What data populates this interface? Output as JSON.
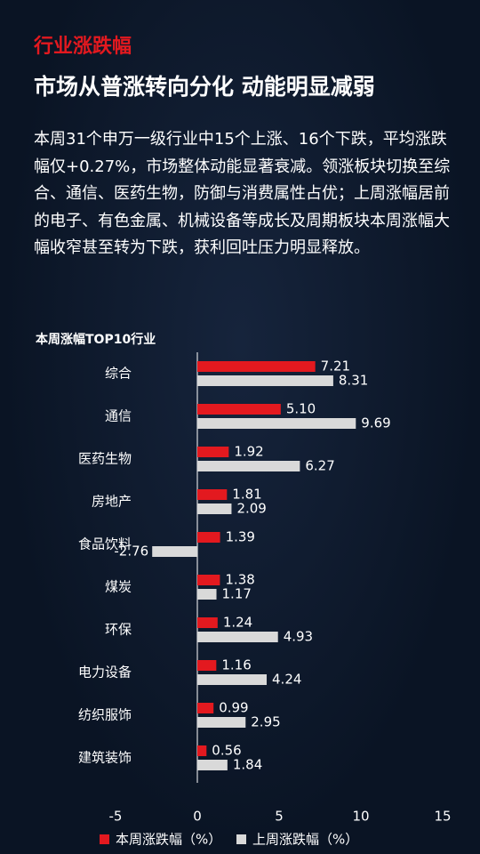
{
  "header": {
    "tag": "行业涨跌幅",
    "headline": "市场从普涨转向分化 动能明显减弱"
  },
  "paragraph": "本周31个申万一级行业中15个上涨、16个下跌，平均涨跌幅仅+0.27%，市场整体动能显著衰减。领涨板块切换至综合、通信、医药生物，防御与消费属性占优；上周涨幅居前的电子、有色金属、机械设备等成长及周期板块本周涨幅大幅收窄甚至转为下跌，获利回吐压力明显释放。",
  "chart_data": {
    "type": "bar",
    "orientation": "horizontal",
    "title": "本周涨幅TOP10行业",
    "categories": [
      "综合",
      "通信",
      "医药生物",
      "房地产",
      "食品饮料",
      "煤炭",
      "环保",
      "电力设备",
      "纺织服饰",
      "建筑装饰"
    ],
    "series": [
      {
        "name": "本周涨跌幅（%）",
        "color": "#e3191f",
        "values": [
          7.21,
          5.1,
          1.92,
          1.81,
          1.39,
          1.38,
          1.24,
          1.16,
          0.99,
          0.56
        ],
        "value_labels": [
          "7.21",
          "5.10",
          "1.92",
          "1.81",
          "1.39",
          "1.38",
          "1.24",
          "1.16",
          "0.99",
          "0.56"
        ]
      },
      {
        "name": "上周涨跌幅（%）",
        "color": "#d9d9d9",
        "values": [
          8.31,
          9.69,
          6.27,
          2.09,
          -2.76,
          1.17,
          4.93,
          4.24,
          2.95,
          1.84
        ],
        "value_labels": [
          "8.31",
          "9.69",
          "6.27",
          "2.09",
          "-2.76",
          "1.17",
          "4.93",
          "4.24",
          "2.95",
          "1.84"
        ]
      }
    ],
    "xlim": [
      -5,
      15
    ],
    "xticks": [
      -5,
      0,
      5,
      10,
      15
    ],
    "legend": "bottom"
  }
}
